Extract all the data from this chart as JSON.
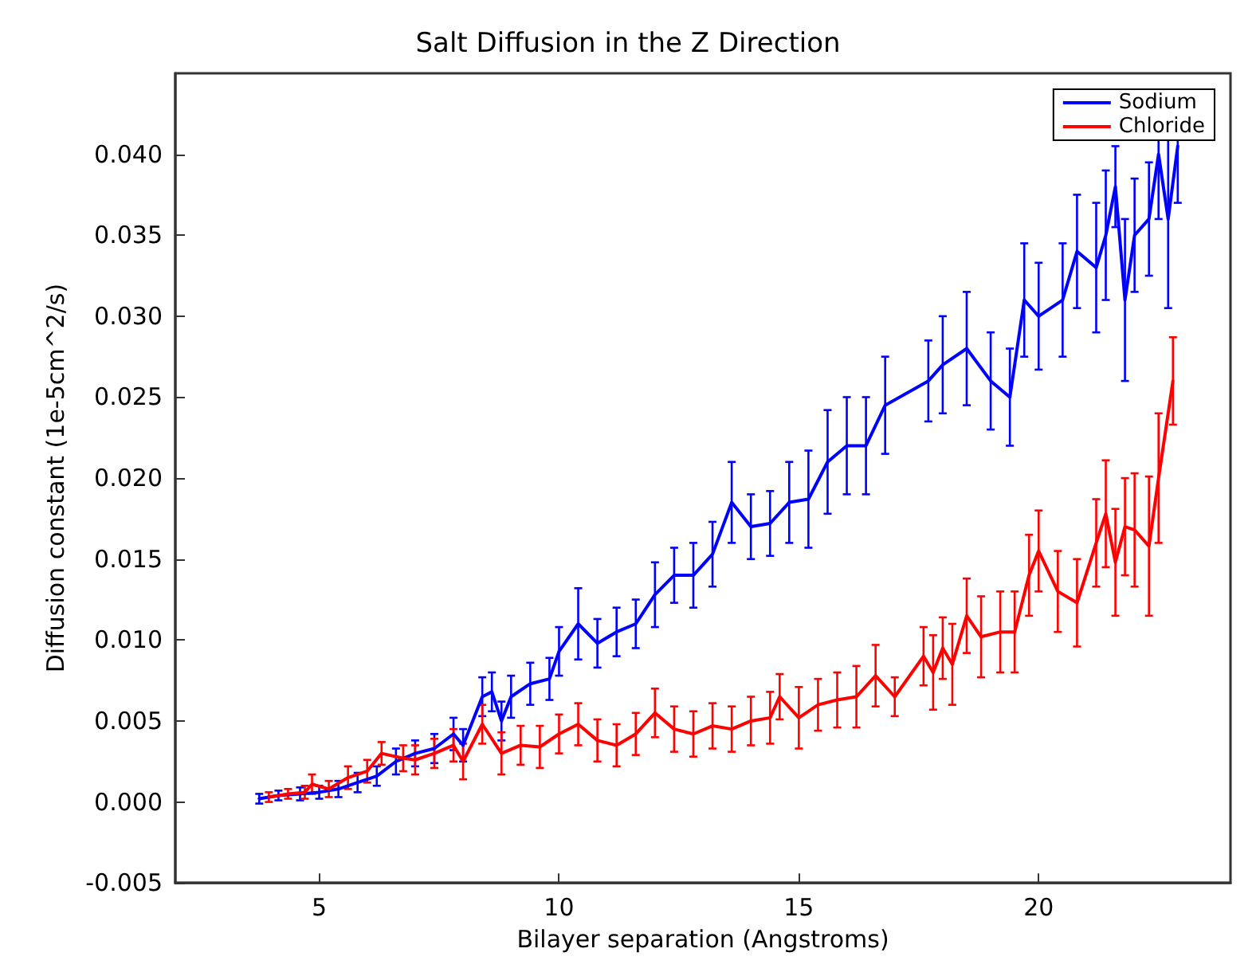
{
  "chart_data": {
    "type": "line",
    "title": "Salt Diffusion in the Z Direction",
    "xlabel": "Bilayer separation (Angstroms)",
    "ylabel": "Diffusion constant (1e-5cm^2/s)",
    "xlim": [
      2,
      24
    ],
    "xticks": [
      5,
      10,
      15,
      20
    ],
    "ylim": [
      -0.005,
      0.045
    ],
    "yticks": [
      {
        "value": -0.005,
        "label": "-0.005"
      },
      {
        "value": 0,
        "label": "0.000"
      },
      {
        "value": 0.005,
        "label": "0.005"
      },
      {
        "value": 0.01,
        "label": "0.010"
      },
      {
        "value": 0.015,
        "label": "0.015"
      },
      {
        "value": 0.02,
        "label": "0.020"
      },
      {
        "value": 0.025,
        "label": "0.025"
      },
      {
        "value": 0.03,
        "label": "0.030"
      },
      {
        "value": 0.035,
        "label": "0.035"
      },
      {
        "value": 0.04,
        "label": "0.040"
      }
    ],
    "grid": false,
    "legend": "top right",
    "marker": "none",
    "line_style": "solid",
    "series": [
      {
        "name": "Sodium",
        "color": "#0000ff",
        "x": [
          3.75,
          4.15,
          4.6,
          5.0,
          5.4,
          5.8,
          6.2,
          6.6,
          7.0,
          7.4,
          7.8,
          8.0,
          8.4,
          8.6,
          8.8,
          9.0,
          9.4,
          9.8,
          10.0,
          10.4,
          10.8,
          11.2,
          11.6,
          12.0,
          12.4,
          12.8,
          13.2,
          13.6,
          14.0,
          14.4,
          14.8,
          15.2,
          15.6,
          16.0,
          16.4,
          16.8,
          17.7,
          18.0,
          18.5,
          19.0,
          19.4,
          19.7,
          20.0,
          20.5,
          20.8,
          21.2,
          21.4,
          21.6,
          21.8,
          22.0,
          22.3,
          22.5,
          22.7,
          22.9
        ],
        "values": [
          0.0002,
          0.0004,
          0.0005,
          0.0006,
          0.0008,
          0.0012,
          0.0016,
          0.0025,
          0.003,
          0.0033,
          0.0042,
          0.0035,
          0.0065,
          0.0068,
          0.005,
          0.0065,
          0.0073,
          0.0076,
          0.0093,
          0.011,
          0.0098,
          0.0105,
          0.011,
          0.0128,
          0.014,
          0.014,
          0.0153,
          0.0185,
          0.017,
          0.0172,
          0.0185,
          0.0187,
          0.021,
          0.022,
          0.022,
          0.0245,
          0.026,
          0.027,
          0.028,
          0.026,
          0.025,
          0.031,
          0.03,
          0.031,
          0.034,
          0.033,
          0.035,
          0.038,
          0.031,
          0.035,
          0.036,
          0.04,
          0.036,
          0.0405
        ],
        "errors": [
          0.0003,
          0.0003,
          0.0004,
          0.0004,
          0.0005,
          0.0006,
          0.0006,
          0.0008,
          0.0008,
          0.0009,
          0.001,
          0.001,
          0.0012,
          0.0012,
          0.0012,
          0.0013,
          0.0013,
          0.0013,
          0.0015,
          0.0022,
          0.0015,
          0.0015,
          0.0015,
          0.002,
          0.0017,
          0.002,
          0.002,
          0.0025,
          0.002,
          0.002,
          0.0025,
          0.003,
          0.0032,
          0.003,
          0.003,
          0.003,
          0.0025,
          0.003,
          0.0035,
          0.003,
          0.003,
          0.0035,
          0.0033,
          0.0035,
          0.0035,
          0.004,
          0.004,
          0.0025,
          0.005,
          0.0035,
          0.0035,
          0.004,
          0.0055,
          0.0035
        ]
      },
      {
        "name": "Chloride",
        "color": "#ff0000",
        "x": [
          3.95,
          4.35,
          4.7,
          4.85,
          5.2,
          5.6,
          6.0,
          6.3,
          6.75,
          7.0,
          7.4,
          7.8,
          8.0,
          8.4,
          8.8,
          9.2,
          9.6,
          10.0,
          10.4,
          10.8,
          11.2,
          11.6,
          12.0,
          12.4,
          12.8,
          13.2,
          13.6,
          14.0,
          14.4,
          14.6,
          15.0,
          15.4,
          15.8,
          16.2,
          16.6,
          17.0,
          17.6,
          17.8,
          18.0,
          18.2,
          18.5,
          18.8,
          19.2,
          19.5,
          19.8,
          20.0,
          20.4,
          20.8,
          21.2,
          21.4,
          21.6,
          21.8,
          22.0,
          22.3,
          22.5,
          22.8
        ],
        "values": [
          0.0003,
          0.0005,
          0.0006,
          0.0011,
          0.0008,
          0.0015,
          0.0019,
          0.003,
          0.0027,
          0.0026,
          0.003,
          0.0035,
          0.0025,
          0.0048,
          0.003,
          0.0035,
          0.0034,
          0.0042,
          0.0048,
          0.0038,
          0.0035,
          0.0042,
          0.0055,
          0.0045,
          0.0042,
          0.0047,
          0.0045,
          0.005,
          0.0052,
          0.0065,
          0.0052,
          0.006,
          0.0063,
          0.0065,
          0.0078,
          0.0065,
          0.009,
          0.008,
          0.0095,
          0.0085,
          0.0115,
          0.0102,
          0.0105,
          0.0105,
          0.014,
          0.0155,
          0.013,
          0.0123,
          0.016,
          0.0178,
          0.0148,
          0.017,
          0.0168,
          0.0158,
          0.02,
          0.026
        ],
        "errors": [
          0.0003,
          0.0003,
          0.0004,
          0.0006,
          0.0005,
          0.0007,
          0.0007,
          0.0007,
          0.0008,
          0.0009,
          0.0009,
          0.001,
          0.0011,
          0.0012,
          0.0013,
          0.0012,
          0.0013,
          0.0012,
          0.0013,
          0.0013,
          0.0013,
          0.0013,
          0.0015,
          0.0014,
          0.0014,
          0.0014,
          0.0014,
          0.0015,
          0.0016,
          0.0014,
          0.0019,
          0.0016,
          0.0017,
          0.0019,
          0.0019,
          0.0012,
          0.0018,
          0.0023,
          0.0019,
          0.0025,
          0.0023,
          0.0025,
          0.0025,
          0.0025,
          0.0025,
          0.0025,
          0.0025,
          0.0027,
          0.0027,
          0.0033,
          0.0033,
          0.003,
          0.0035,
          0.0043,
          0.004,
          0.0027
        ]
      }
    ]
  }
}
